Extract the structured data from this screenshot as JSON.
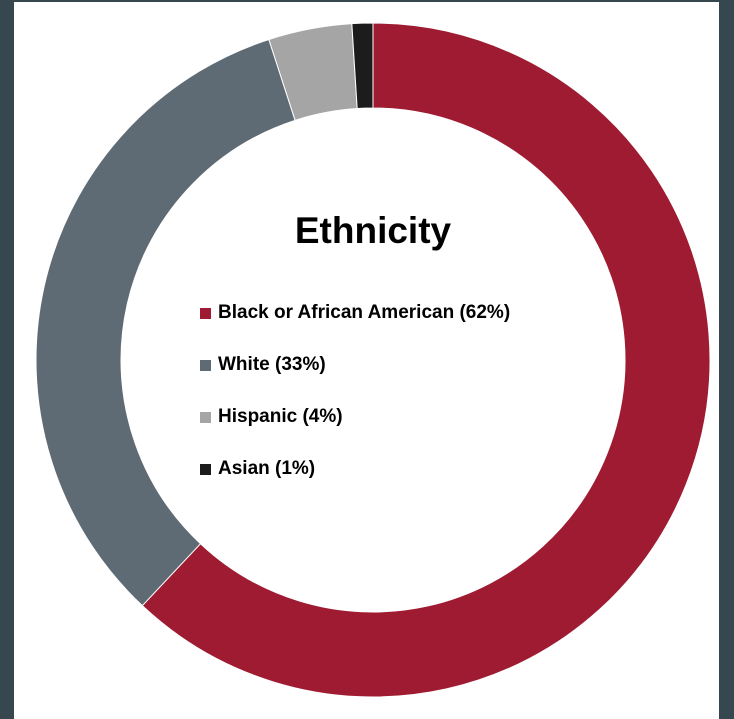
{
  "chart_data": {
    "type": "pie",
    "title": "Ethnicity",
    "donut": true,
    "slices": [
      {
        "label": "Black or African American (62%)",
        "value": 62,
        "color": "#9e1b32"
      },
      {
        "label": "White (33%)",
        "value": 33,
        "color": "#5f6b74"
      },
      {
        "label": "Hispanic (4%)",
        "value": 4,
        "color": "#a5a5a5"
      },
      {
        "label": "Asian (1%)",
        "value": 1,
        "color": "#1c1c1c"
      }
    ],
    "legend_position": "center"
  }
}
